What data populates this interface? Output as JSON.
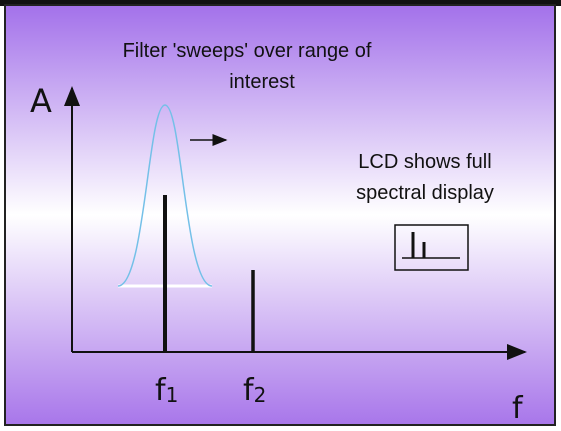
{
  "caption": {
    "line1": "Filter 'sweeps' over range of",
    "line2": "interest"
  },
  "y_axis_label": "A",
  "x_axis_label": "f",
  "lcd_note": {
    "line1": "LCD shows full",
    "line2": "spectral display"
  },
  "markers": [
    {
      "base": "f",
      "sub": "1"
    },
    {
      "base": "f",
      "sub": "2"
    }
  ]
}
